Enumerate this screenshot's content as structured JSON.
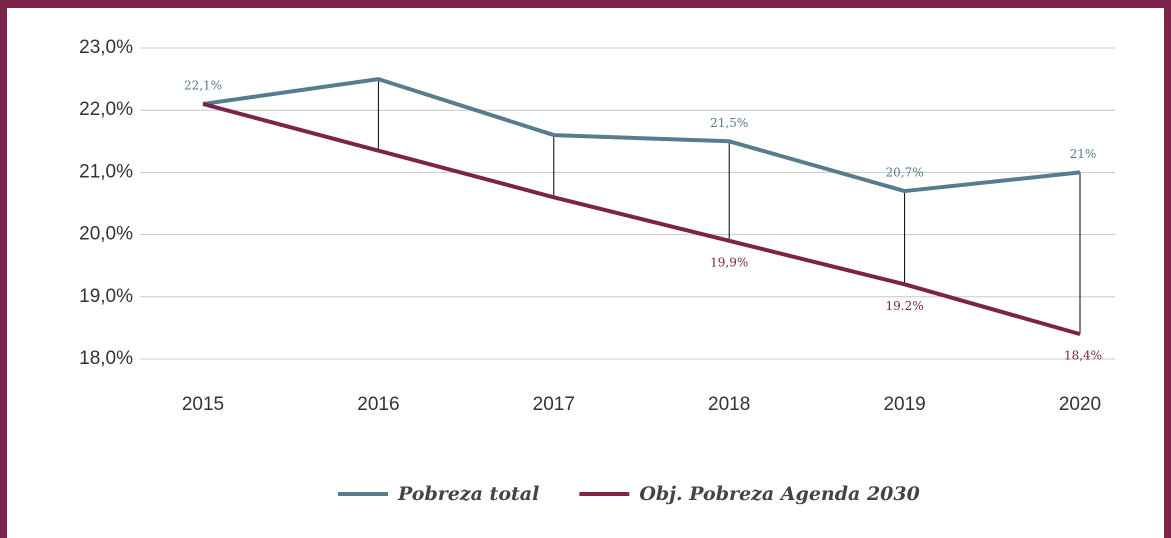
{
  "chart_data": {
    "type": "line",
    "categories": [
      "2015",
      "2016",
      "2017",
      "2018",
      "2019",
      "2020"
    ],
    "series": [
      {
        "name": "Pobreza total",
        "color": "#587b8f",
        "values": [
          22.1,
          22.5,
          21.6,
          21.5,
          20.7,
          21
        ],
        "value_labels": [
          "22,1%",
          null,
          null,
          "21,5%",
          "20,7%",
          "21%"
        ]
      },
      {
        "name": "Obj. Pobreza Agenda 2030",
        "color": "#7b2348",
        "values": [
          22.1,
          21.35,
          20.6,
          19.9,
          19.2,
          18.4
        ],
        "value_labels": [
          null,
          null,
          null,
          "19,9%",
          "19.2%",
          "18,4%"
        ]
      }
    ],
    "ylim": [
      18,
      23
    ],
    "yticks": [
      {
        "value": 18,
        "label": "18,0%"
      },
      {
        "value": 19,
        "label": "19,0%"
      },
      {
        "value": 20,
        "label": "20,0%"
      },
      {
        "value": 21,
        "label": "21,0%"
      },
      {
        "value": 22,
        "label": "22,0%"
      },
      {
        "value": 23,
        "label": "23,0%"
      }
    ],
    "grid": true,
    "drop_lines": true,
    "legend": "bottom"
  }
}
